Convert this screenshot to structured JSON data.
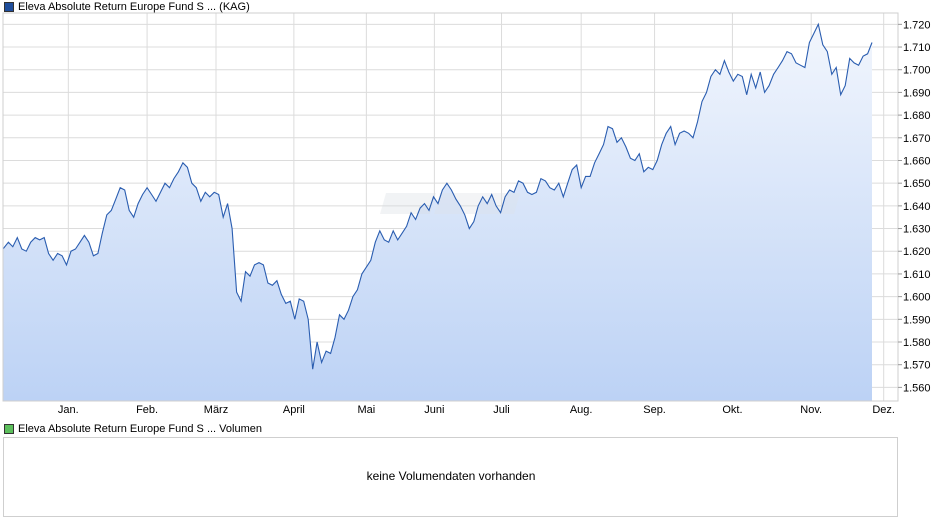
{
  "legend": {
    "price_label": "Eleva Absolute Return Europe Fund S ... (KAG)",
    "price_color": "#1f4e9c",
    "volume_label": "Eleva Absolute Return Europe Fund S ... Volumen",
    "volume_color": "#5cbf5c"
  },
  "volume_panel": {
    "message": "keine Volumendaten vorhanden"
  },
  "chart_data": {
    "type": "area",
    "title": "",
    "xlabel": "",
    "ylabel": "",
    "ylim": [
      1.554,
      1.725
    ],
    "y_ticks": [
      1.56,
      1.57,
      1.58,
      1.59,
      1.6,
      1.61,
      1.62,
      1.63,
      1.64,
      1.65,
      1.66,
      1.67,
      1.68,
      1.69,
      1.7,
      1.71,
      1.72
    ],
    "y_tick_labels": [
      "1.560",
      "1.570",
      "1.580",
      "1.590",
      "1.600",
      "1.610",
      "1.620",
      "1.630",
      "1.640",
      "1.650",
      "1.660",
      "1.670",
      "1.680",
      "1.690",
      "1.700",
      "1.710",
      "1.720"
    ],
    "x_range": [
      0,
      1
    ],
    "x_ticks": [
      0.073,
      0.161,
      0.238,
      0.325,
      0.406,
      0.482,
      0.557,
      0.646,
      0.728,
      0.815,
      0.903,
      0.984
    ],
    "x_tick_labels": [
      "Jan.",
      "Feb.",
      "März",
      "April",
      "Mai",
      "Juni",
      "Juli",
      "Aug.",
      "Sep.",
      "Okt.",
      "Nov.",
      "Dez."
    ],
    "grid": true,
    "line_color": "#2a5db0",
    "fill_top_color": "#f2f6fd",
    "fill_bottom_color": "#bcd2f5",
    "series": [
      {
        "points": [
          [
            0.0,
            1.621
          ],
          [
            0.006,
            1.624
          ],
          [
            0.011,
            1.622
          ],
          [
            0.016,
            1.626
          ],
          [
            0.021,
            1.621
          ],
          [
            0.026,
            1.62
          ],
          [
            0.031,
            1.624
          ],
          [
            0.036,
            1.626
          ],
          [
            0.041,
            1.625
          ],
          [
            0.046,
            1.626
          ],
          [
            0.051,
            1.619
          ],
          [
            0.056,
            1.616
          ],
          [
            0.061,
            1.619
          ],
          [
            0.066,
            1.618
          ],
          [
            0.071,
            1.614
          ],
          [
            0.076,
            1.62
          ],
          [
            0.081,
            1.621
          ],
          [
            0.086,
            1.624
          ],
          [
            0.091,
            1.627
          ],
          [
            0.096,
            1.624
          ],
          [
            0.101,
            1.618
          ],
          [
            0.106,
            1.619
          ],
          [
            0.111,
            1.628
          ],
          [
            0.116,
            1.636
          ],
          [
            0.121,
            1.638
          ],
          [
            0.126,
            1.643
          ],
          [
            0.131,
            1.648
          ],
          [
            0.136,
            1.647
          ],
          [
            0.141,
            1.638
          ],
          [
            0.146,
            1.635
          ],
          [
            0.151,
            1.641
          ],
          [
            0.156,
            1.645
          ],
          [
            0.161,
            1.648
          ],
          [
            0.166,
            1.645
          ],
          [
            0.171,
            1.642
          ],
          [
            0.176,
            1.646
          ],
          [
            0.181,
            1.65
          ],
          [
            0.186,
            1.648
          ],
          [
            0.191,
            1.652
          ],
          [
            0.196,
            1.655
          ],
          [
            0.201,
            1.659
          ],
          [
            0.206,
            1.657
          ],
          [
            0.211,
            1.65
          ],
          [
            0.216,
            1.648
          ],
          [
            0.221,
            1.642
          ],
          [
            0.226,
            1.646
          ],
          [
            0.231,
            1.644
          ],
          [
            0.236,
            1.646
          ],
          [
            0.241,
            1.645
          ],
          [
            0.246,
            1.635
          ],
          [
            0.251,
            1.641
          ],
          [
            0.256,
            1.63
          ],
          [
            0.261,
            1.602
          ],
          [
            0.266,
            1.598
          ],
          [
            0.271,
            1.611
          ],
          [
            0.276,
            1.609
          ],
          [
            0.281,
            1.614
          ],
          [
            0.286,
            1.615
          ],
          [
            0.291,
            1.614
          ],
          [
            0.296,
            1.606
          ],
          [
            0.301,
            1.605
          ],
          [
            0.306,
            1.607
          ],
          [
            0.311,
            1.601
          ],
          [
            0.316,
            1.597
          ],
          [
            0.321,
            1.598
          ],
          [
            0.326,
            1.59
          ],
          [
            0.331,
            1.599
          ],
          [
            0.336,
            1.598
          ],
          [
            0.341,
            1.59
          ],
          [
            0.346,
            1.568
          ],
          [
            0.351,
            1.58
          ],
          [
            0.356,
            1.571
          ],
          [
            0.361,
            1.576
          ],
          [
            0.366,
            1.575
          ],
          [
            0.371,
            1.582
          ],
          [
            0.376,
            1.592
          ],
          [
            0.381,
            1.59
          ],
          [
            0.386,
            1.594
          ],
          [
            0.391,
            1.6
          ],
          [
            0.396,
            1.603
          ],
          [
            0.401,
            1.61
          ],
          [
            0.406,
            1.613
          ],
          [
            0.411,
            1.616
          ],
          [
            0.416,
            1.624
          ],
          [
            0.421,
            1.629
          ],
          [
            0.426,
            1.625
          ],
          [
            0.431,
            1.624
          ],
          [
            0.436,
            1.629
          ],
          [
            0.441,
            1.625
          ],
          [
            0.446,
            1.628
          ],
          [
            0.451,
            1.631
          ],
          [
            0.456,
            1.637
          ],
          [
            0.461,
            1.634
          ],
          [
            0.466,
            1.639
          ],
          [
            0.471,
            1.641
          ],
          [
            0.476,
            1.638
          ],
          [
            0.481,
            1.644
          ],
          [
            0.486,
            1.641
          ],
          [
            0.491,
            1.647
          ],
          [
            0.496,
            1.65
          ],
          [
            0.501,
            1.647
          ],
          [
            0.506,
            1.643
          ],
          [
            0.511,
            1.64
          ],
          [
            0.516,
            1.636
          ],
          [
            0.521,
            1.63
          ],
          [
            0.526,
            1.633
          ],
          [
            0.531,
            1.64
          ],
          [
            0.536,
            1.644
          ],
          [
            0.541,
            1.641
          ],
          [
            0.546,
            1.645
          ],
          [
            0.551,
            1.64
          ],
          [
            0.556,
            1.637
          ],
          [
            0.561,
            1.644
          ],
          [
            0.566,
            1.647
          ],
          [
            0.571,
            1.646
          ],
          [
            0.576,
            1.651
          ],
          [
            0.581,
            1.65
          ],
          [
            0.586,
            1.646
          ],
          [
            0.591,
            1.645
          ],
          [
            0.596,
            1.646
          ],
          [
            0.601,
            1.652
          ],
          [
            0.606,
            1.651
          ],
          [
            0.611,
            1.648
          ],
          [
            0.616,
            1.647
          ],
          [
            0.621,
            1.65
          ],
          [
            0.626,
            1.644
          ],
          [
            0.631,
            1.65
          ],
          [
            0.636,
            1.656
          ],
          [
            0.641,
            1.658
          ],
          [
            0.646,
            1.648
          ],
          [
            0.651,
            1.653
          ],
          [
            0.656,
            1.653
          ],
          [
            0.661,
            1.659
          ],
          [
            0.666,
            1.663
          ],
          [
            0.671,
            1.667
          ],
          [
            0.676,
            1.675
          ],
          [
            0.681,
            1.674
          ],
          [
            0.686,
            1.668
          ],
          [
            0.691,
            1.67
          ],
          [
            0.696,
            1.666
          ],
          [
            0.701,
            1.661
          ],
          [
            0.706,
            1.66
          ],
          [
            0.711,
            1.663
          ],
          [
            0.716,
            1.655
          ],
          [
            0.721,
            1.657
          ],
          [
            0.726,
            1.656
          ],
          [
            0.731,
            1.66
          ],
          [
            0.736,
            1.667
          ],
          [
            0.741,
            1.672
          ],
          [
            0.746,
            1.675
          ],
          [
            0.751,
            1.667
          ],
          [
            0.756,
            1.672
          ],
          [
            0.761,
            1.673
          ],
          [
            0.766,
            1.672
          ],
          [
            0.771,
            1.67
          ],
          [
            0.776,
            1.677
          ],
          [
            0.781,
            1.686
          ],
          [
            0.786,
            1.69
          ],
          [
            0.791,
            1.697
          ],
          [
            0.796,
            1.7
          ],
          [
            0.801,
            1.698
          ],
          [
            0.806,
            1.704
          ],
          [
            0.811,
            1.699
          ],
          [
            0.816,
            1.695
          ],
          [
            0.821,
            1.698
          ],
          [
            0.826,
            1.697
          ],
          [
            0.831,
            1.689
          ],
          [
            0.836,
            1.698
          ],
          [
            0.841,
            1.692
          ],
          [
            0.846,
            1.699
          ],
          [
            0.851,
            1.69
          ],
          [
            0.856,
            1.693
          ],
          [
            0.861,
            1.698
          ],
          [
            0.866,
            1.701
          ],
          [
            0.871,
            1.704
          ],
          [
            0.876,
            1.708
          ],
          [
            0.881,
            1.707
          ],
          [
            0.886,
            1.703
          ],
          [
            0.891,
            1.702
          ],
          [
            0.896,
            1.701
          ],
          [
            0.901,
            1.712
          ],
          [
            0.906,
            1.716
          ],
          [
            0.911,
            1.72
          ],
          [
            0.916,
            1.711
          ],
          [
            0.921,
            1.708
          ],
          [
            0.926,
            1.698
          ],
          [
            0.931,
            1.701
          ],
          [
            0.936,
            1.689
          ],
          [
            0.941,
            1.693
          ],
          [
            0.946,
            1.705
          ],
          [
            0.951,
            1.703
          ],
          [
            0.956,
            1.702
          ],
          [
            0.961,
            1.706
          ],
          [
            0.966,
            1.707
          ],
          [
            0.971,
            1.712
          ]
        ]
      }
    ]
  }
}
